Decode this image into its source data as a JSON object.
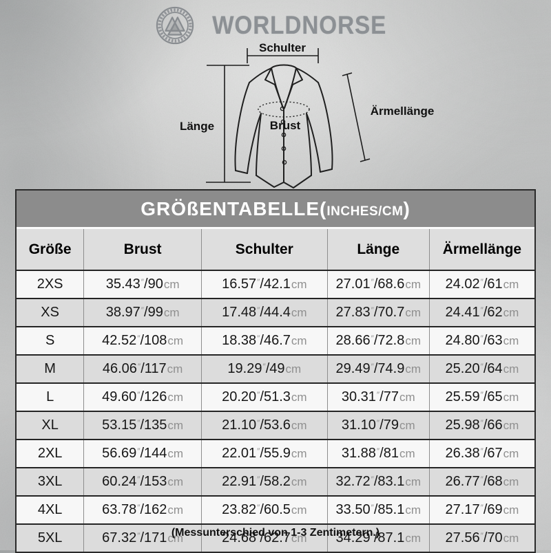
{
  "brand": {
    "name": "WORLDNORSE",
    "logo_icon": "valknut-ring-logo"
  },
  "diagram": {
    "labels": {
      "schulter": "Schulter",
      "laenge": "Länge",
      "brust": "Brust",
      "aermellaenge": "Ärmellänge"
    }
  },
  "table": {
    "title": {
      "main": "GRÖßENTABELLE(",
      "units": "INCHES/CM",
      "close": ")"
    },
    "columns": [
      "Größe",
      "Brust",
      "Schulter",
      "Länge",
      "Ärmellänge"
    ],
    "unit_inch_mark": "″",
    "separator": "/",
    "unit_cm": "cm",
    "rows": [
      {
        "size": "2XS",
        "brust": {
          "in": "35.43",
          "cm": "90"
        },
        "schulter": {
          "in": "16.57",
          "cm": "42.1"
        },
        "laenge": {
          "in": "27.01",
          "cm": "68.6"
        },
        "aermellaenge": {
          "in": "24.02",
          "cm": "61"
        }
      },
      {
        "size": "XS",
        "brust": {
          "in": "38.97",
          "cm": "99"
        },
        "schulter": {
          "in": "17.48",
          "cm": "44.4"
        },
        "laenge": {
          "in": "27.83",
          "cm": "70.7"
        },
        "aermellaenge": {
          "in": "24.41",
          "cm": "62"
        }
      },
      {
        "size": "S",
        "brust": {
          "in": "42.52",
          "cm": "108"
        },
        "schulter": {
          "in": "18.38",
          "cm": "46.7"
        },
        "laenge": {
          "in": "28.66",
          "cm": "72.8"
        },
        "aermellaenge": {
          "in": "24.80",
          "cm": "63"
        }
      },
      {
        "size": "M",
        "brust": {
          "in": "46.06",
          "cm": "117"
        },
        "schulter": {
          "in": "19.29",
          "cm": "49"
        },
        "laenge": {
          "in": "29.49",
          "cm": "74.9"
        },
        "aermellaenge": {
          "in": "25.20",
          "cm": "64"
        }
      },
      {
        "size": "L",
        "brust": {
          "in": "49.60",
          "cm": "126"
        },
        "schulter": {
          "in": "20.20",
          "cm": "51.3"
        },
        "laenge": {
          "in": "30.31",
          "cm": "77"
        },
        "aermellaenge": {
          "in": "25.59",
          "cm": "65"
        }
      },
      {
        "size": "XL",
        "brust": {
          "in": "53.15",
          "cm": "135"
        },
        "schulter": {
          "in": "21.10",
          "cm": "53.6"
        },
        "laenge": {
          "in": "31.10",
          "cm": "79"
        },
        "aermellaenge": {
          "in": "25.98",
          "cm": "66"
        }
      },
      {
        "size": "2XL",
        "brust": {
          "in": "56.69",
          "cm": "144"
        },
        "schulter": {
          "in": "22.01",
          "cm": "55.9"
        },
        "laenge": {
          "in": "31.88",
          "cm": "81"
        },
        "aermellaenge": {
          "in": "26.38",
          "cm": "67"
        }
      },
      {
        "size": "3XL",
        "brust": {
          "in": "60.24",
          "cm": "153"
        },
        "schulter": {
          "in": "22.91",
          "cm": "58.2"
        },
        "laenge": {
          "in": "32.72",
          "cm": "83.1"
        },
        "aermellaenge": {
          "in": "26.77",
          "cm": "68"
        }
      },
      {
        "size": "4XL",
        "brust": {
          "in": "63.78",
          "cm": "162"
        },
        "schulter": {
          "in": "23.82",
          "cm": "60.5"
        },
        "laenge": {
          "in": "33.50",
          "cm": "85.1"
        },
        "aermellaenge": {
          "in": "27.17",
          "cm": "69"
        }
      },
      {
        "size": "5XL",
        "brust": {
          "in": "67.32",
          "cm": "171"
        },
        "schulter": {
          "in": "24.68",
          "cm": "62.7"
        },
        "laenge": {
          "in": "34.29",
          "cm": "87.1"
        },
        "aermellaenge": {
          "in": "27.56",
          "cm": "70"
        }
      }
    ]
  },
  "footer": {
    "note": "(Messunterschied von 1-3 Zentimetern.)"
  },
  "colors": {
    "background": "#c9cac9",
    "title_band": "#8c8c8c",
    "row_alt": "#dcdcdc",
    "row_base": "#f7f7f7",
    "table_border": "#242424",
    "unit_gray": "#8f8f8f",
    "brand_gray": "#8c9094",
    "text": "#161616"
  }
}
